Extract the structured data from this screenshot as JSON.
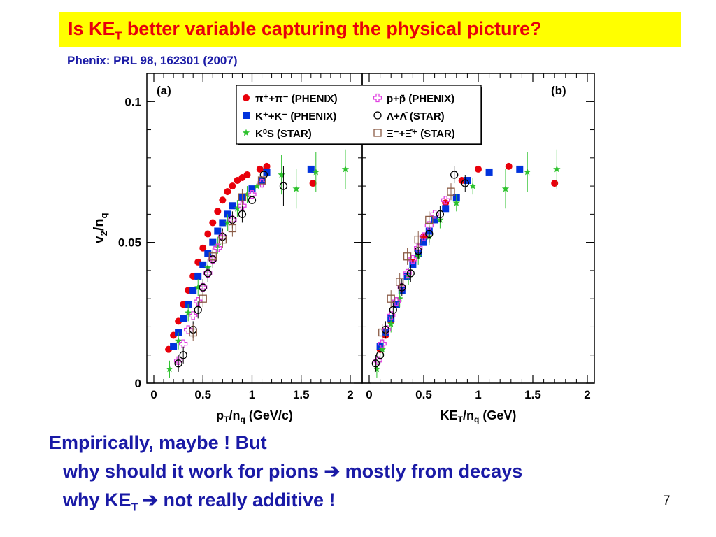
{
  "slide": {
    "title_main": "Is KE",
    "title_sub": "T",
    "title_rest": " better variable capturing the physical picture?",
    "reference": "Phenix: PRL 98, 162301 (2007)",
    "line1": "Empirically, maybe ! But",
    "line2_a": "why should it work for pions ",
    "line2_arrow": "➔",
    "line2_b": " mostly from decays",
    "line3_a": "why KE",
    "line3_sub": "T",
    "line3_arrow": "➔",
    "line3_b": " not really additive !",
    "page_number": "7",
    "accent_title": "#e8000b",
    "accent_body": "#1a1aa6",
    "title_bg": "#ffff00"
  },
  "chart_data": [
    {
      "type": "scatter",
      "panel_label": "(a)",
      "xlabel_main": "p",
      "xlabel_sub1": "T",
      "xlabel_mid": "/n",
      "xlabel_sub2": "q",
      "xlabel_tail": " (GeV/c)",
      "ylabel_main": "v",
      "ylabel_sub1": "2",
      "ylabel_mid": "/n",
      "ylabel_sub2": "q",
      "xlim": [
        0,
        2.05
      ],
      "ylim": [
        0,
        0.11
      ],
      "xticks": [
        "0",
        "0.5",
        "1",
        "1.5",
        "2"
      ],
      "yticks": [
        "0",
        "0.05",
        "0.1"
      ],
      "series": [
        {
          "name": "π⁺+π⁻ (PHENIX)",
          "marker": "circle",
          "color": "#e8000b",
          "x": [
            0.15,
            0.2,
            0.25,
            0.3,
            0.35,
            0.4,
            0.45,
            0.5,
            0.55,
            0.6,
            0.65,
            0.7,
            0.75,
            0.8,
            0.85,
            0.9,
            0.95,
            1.08,
            1.15,
            1.62
          ],
          "y": [
            0.012,
            0.017,
            0.022,
            0.028,
            0.033,
            0.038,
            0.043,
            0.048,
            0.053,
            0.057,
            0.061,
            0.065,
            0.068,
            0.07,
            0.072,
            0.073,
            0.074,
            0.076,
            0.077,
            0.071
          ]
        },
        {
          "name": "K⁺+K⁻ (PHENIX)",
          "marker": "square",
          "color": "#0033dd",
          "x": [
            0.2,
            0.25,
            0.3,
            0.35,
            0.4,
            0.45,
            0.5,
            0.55,
            0.6,
            0.65,
            0.7,
            0.75,
            0.8,
            0.9,
            1.0,
            1.1,
            1.15,
            1.6
          ],
          "y": [
            0.013,
            0.018,
            0.023,
            0.028,
            0.033,
            0.038,
            0.042,
            0.046,
            0.05,
            0.054,
            0.057,
            0.06,
            0.063,
            0.066,
            0.069,
            0.072,
            0.075,
            0.076
          ]
        },
        {
          "name": "K⁰S (STAR)",
          "marker": "star",
          "color": "#2ec22e",
          "x": [
            0.16,
            0.25,
            0.35,
            0.45,
            0.55,
            0.65,
            0.75,
            0.85,
            0.95,
            1.05,
            1.3,
            1.45,
            1.65,
            1.95
          ],
          "y": [
            0.005,
            0.015,
            0.025,
            0.034,
            0.041,
            0.049,
            0.057,
            0.062,
            0.067,
            0.07,
            0.074,
            0.069,
            0.075,
            0.076
          ]
        },
        {
          "name": "p+p̄ (PHENIX)",
          "marker": "cross",
          "color": "#e040e0",
          "x": [
            0.25,
            0.3,
            0.35,
            0.4,
            0.45,
            0.5,
            0.55,
            0.6,
            0.65,
            0.7,
            0.8,
            0.9,
            1.0,
            1.1
          ],
          "y": [
            0.008,
            0.014,
            0.019,
            0.024,
            0.029,
            0.034,
            0.039,
            0.044,
            0.048,
            0.052,
            0.058,
            0.063,
            0.067,
            0.071
          ]
        },
        {
          "name": "Λ+Λ̄ (STAR)",
          "marker": "opencircle",
          "color": "#000000",
          "x": [
            0.25,
            0.3,
            0.4,
            0.45,
            0.5,
            0.55,
            0.6,
            0.7,
            0.8,
            0.9,
            1.0,
            1.12,
            1.32
          ],
          "y": [
            0.007,
            0.01,
            0.019,
            0.026,
            0.034,
            0.039,
            0.044,
            0.052,
            0.058,
            0.06,
            0.065,
            0.074,
            0.07
          ]
        },
        {
          "name": "Ξ⁻+Ξ̄⁺ (STAR)",
          "marker": "opensquare",
          "color": "#8a5a44",
          "x": [
            0.4,
            0.5,
            0.6,
            0.7,
            0.8,
            0.9,
            1.1
          ],
          "y": [
            0.018,
            0.03,
            0.045,
            0.051,
            0.055,
            0.066,
            0.072
          ]
        }
      ]
    },
    {
      "type": "scatter",
      "panel_label": "(b)",
      "xlabel_main": "KE",
      "xlabel_sub1": "T",
      "xlabel_mid": "/n",
      "xlabel_sub2": "q",
      "xlabel_tail": " (GeV)",
      "xlim": [
        0,
        2.0
      ],
      "ylim": [
        0,
        0.11
      ],
      "xticks": [
        "0",
        "0.5",
        "1",
        "1.5",
        "2"
      ],
      "yticks": [],
      "series": [
        {
          "name": "π⁺+π⁻ (PHENIX)",
          "marker": "circle",
          "color": "#e8000b",
          "x": [
            0.1,
            0.15,
            0.2,
            0.25,
            0.3,
            0.35,
            0.4,
            0.5,
            0.6,
            0.7,
            0.85,
            1.0,
            1.28,
            1.7
          ],
          "y": [
            0.012,
            0.017,
            0.022,
            0.028,
            0.033,
            0.038,
            0.043,
            0.052,
            0.058,
            0.064,
            0.072,
            0.076,
            0.077,
            0.071
          ]
        },
        {
          "name": "K⁺+K⁻ (PHENIX)",
          "marker": "square",
          "color": "#0033dd",
          "x": [
            0.1,
            0.15,
            0.2,
            0.25,
            0.3,
            0.35,
            0.4,
            0.45,
            0.5,
            0.55,
            0.6,
            0.7,
            0.8,
            0.9,
            1.1,
            1.38
          ],
          "y": [
            0.013,
            0.018,
            0.023,
            0.028,
            0.033,
            0.038,
            0.042,
            0.046,
            0.05,
            0.054,
            0.058,
            0.062,
            0.066,
            0.072,
            0.075,
            0.076
          ]
        },
        {
          "name": "K⁰S (STAR)",
          "marker": "star",
          "color": "#2ec22e",
          "x": [
            0.07,
            0.12,
            0.2,
            0.28,
            0.36,
            0.45,
            0.55,
            0.65,
            0.8,
            0.95,
            1.25,
            1.45,
            1.72
          ],
          "y": [
            0.005,
            0.012,
            0.021,
            0.03,
            0.038,
            0.045,
            0.052,
            0.058,
            0.064,
            0.07,
            0.069,
            0.075,
            0.076
          ]
        },
        {
          "name": "p+p̄ (PHENIX)",
          "marker": "cross",
          "color": "#e040e0",
          "x": [
            0.08,
            0.12,
            0.16,
            0.2,
            0.25,
            0.3,
            0.35,
            0.4,
            0.45,
            0.5,
            0.55,
            0.6,
            0.7
          ],
          "y": [
            0.008,
            0.014,
            0.019,
            0.024,
            0.029,
            0.034,
            0.039,
            0.044,
            0.048,
            0.052,
            0.056,
            0.06,
            0.065
          ]
        },
        {
          "name": "Λ+Λ̄ (STAR)",
          "marker": "opencircle",
          "color": "#000000",
          "x": [
            0.06,
            0.1,
            0.15,
            0.22,
            0.3,
            0.38,
            0.45,
            0.55,
            0.65,
            0.78,
            0.88
          ],
          "y": [
            0.007,
            0.01,
            0.019,
            0.026,
            0.034,
            0.039,
            0.047,
            0.053,
            0.06,
            0.074,
            0.071
          ]
        },
        {
          "name": "Ξ⁻+Ξ̄⁺ (STAR)",
          "marker": "opensquare",
          "color": "#8a5a44",
          "x": [
            0.12,
            0.2,
            0.28,
            0.35,
            0.45,
            0.55,
            0.75
          ],
          "y": [
            0.018,
            0.03,
            0.036,
            0.045,
            0.051,
            0.058,
            0.068
          ]
        }
      ]
    }
  ],
  "legend": {
    "left": [
      {
        "marker": "circle",
        "color": "#e8000b",
        "text": "π⁺+π⁻ (PHENIX)"
      },
      {
        "marker": "square",
        "color": "#0033dd",
        "text": "K⁺+K⁻ (PHENIX)"
      },
      {
        "marker": "star",
        "color": "#2ec22e",
        "text": "K⁰S (STAR)"
      }
    ],
    "right": [
      {
        "marker": "cross",
        "color": "#e040e0",
        "text": "p+p̄ (PHENIX)"
      },
      {
        "marker": "opencircle",
        "color": "#000000",
        "text": "Λ+Λ̄ (STAR)"
      },
      {
        "marker": "opensquare",
        "color": "#8a5a44",
        "text": "Ξ⁻+Ξ̄⁺ (STAR)"
      }
    ]
  }
}
